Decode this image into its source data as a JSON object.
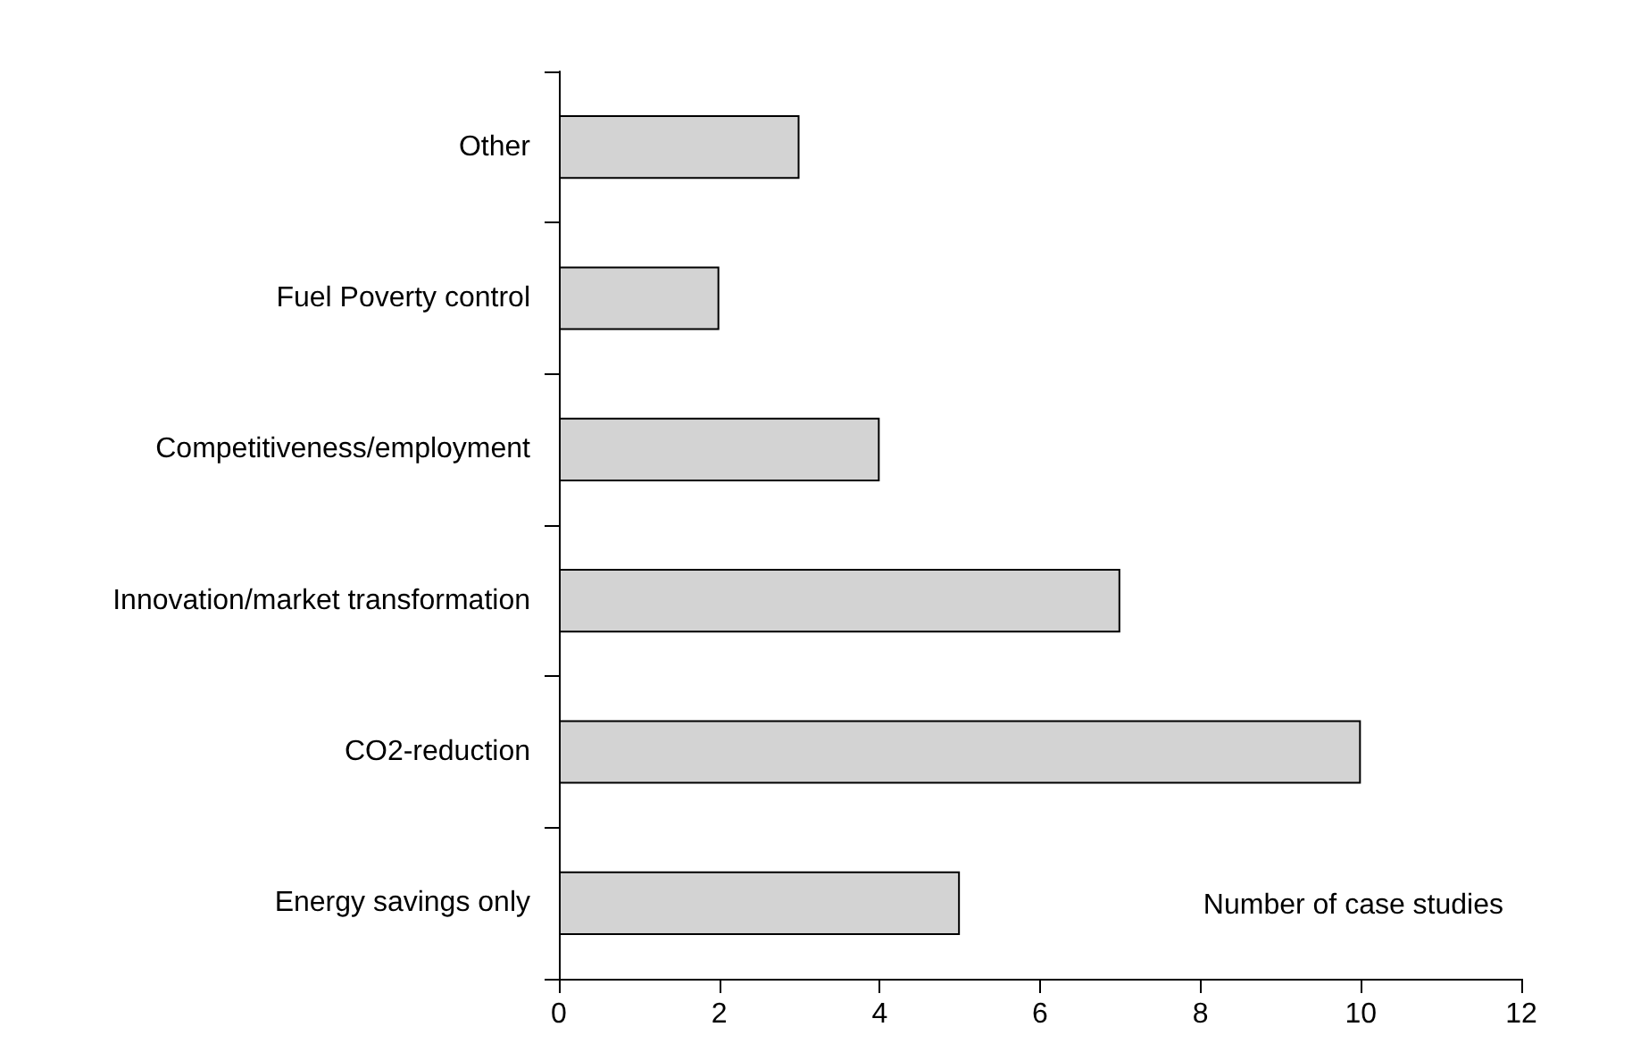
{
  "chart_data": {
    "type": "bar",
    "orientation": "horizontal",
    "categories": [
      "Other",
      "Fuel Poverty control",
      "Competitiveness/employment",
      "Innovation/market transformation",
      "CO2-reduction",
      "Energy savings only"
    ],
    "values": [
      3,
      2,
      4,
      7,
      10,
      5
    ],
    "color": "#d3d3d3",
    "xlim": [
      0,
      12
    ],
    "xticks": [
      0,
      2,
      4,
      6,
      8,
      10,
      12
    ],
    "xlabel": "Number of case studies"
  }
}
